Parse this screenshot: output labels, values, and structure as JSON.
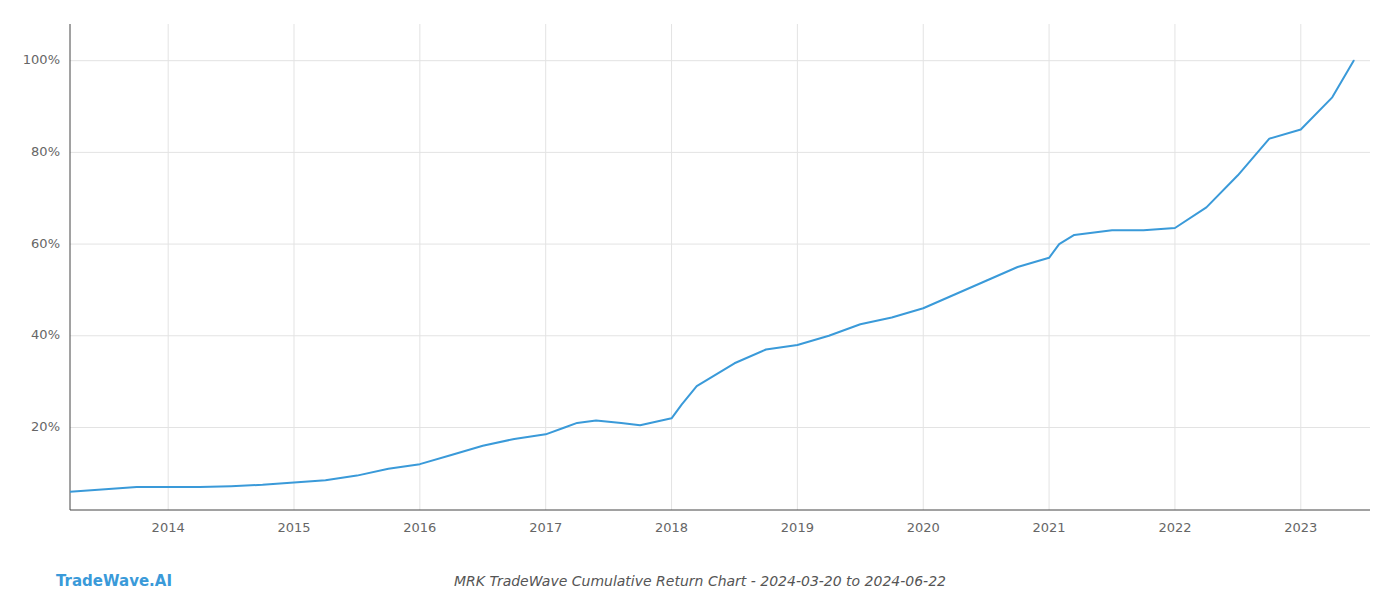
{
  "chart_data": {
    "type": "line",
    "title": "MRK TradeWave Cumulative Return Chart - 2024-03-20 to 2024-06-22",
    "annotations": [
      "TradeWave.AI"
    ],
    "x": [
      2013.22,
      2013.5,
      2013.75,
      2014.0,
      2014.25,
      2014.5,
      2014.75,
      2015.0,
      2015.25,
      2015.5,
      2015.75,
      2016.0,
      2016.25,
      2016.5,
      2016.75,
      2017.0,
      2017.15,
      2017.25,
      2017.4,
      2017.6,
      2017.75,
      2018.0,
      2018.08,
      2018.2,
      2018.5,
      2018.75,
      2019.0,
      2019.25,
      2019.5,
      2019.75,
      2020.0,
      2020.25,
      2020.5,
      2020.75,
      2021.0,
      2021.08,
      2021.2,
      2021.5,
      2021.75,
      2022.0,
      2022.25,
      2022.5,
      2022.75,
      2023.0,
      2023.25,
      2023.42
    ],
    "values": [
      6,
      6.5,
      7,
      7,
      7,
      7.2,
      7.5,
      8,
      8.5,
      9.5,
      11,
      12,
      14,
      16,
      17.5,
      18.5,
      20,
      21,
      21.5,
      21,
      20.5,
      22,
      25,
      29,
      34,
      37,
      38,
      40,
      42.5,
      44,
      46,
      49,
      52,
      55,
      57,
      60,
      62,
      63,
      63,
      63.5,
      68,
      75,
      83,
      85,
      92,
      100
    ],
    "color": "#3a9ad9",
    "xlim": [
      2013.22,
      2023.55
    ],
    "ylim": [
      2,
      108
    ],
    "xticks": [
      2014,
      2015,
      2016,
      2017,
      2018,
      2019,
      2020,
      2021,
      2022,
      2023
    ],
    "yticks": [
      {
        "value": 20,
        "label": "20%"
      },
      {
        "value": 40,
        "label": "40%"
      },
      {
        "value": 60,
        "label": "60%"
      },
      {
        "value": 80,
        "label": "80%"
      },
      {
        "value": 100,
        "label": "100%"
      }
    ],
    "grid": true
  }
}
